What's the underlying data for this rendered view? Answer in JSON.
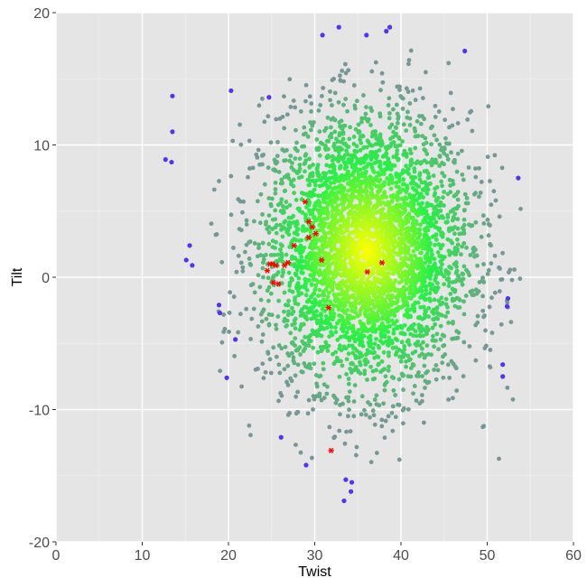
{
  "chart_data": {
    "type": "scatter",
    "xlabel": "Twist",
    "ylabel": "Tilt",
    "xlim": [
      0,
      60
    ],
    "ylim": [
      -20,
      20
    ],
    "x_ticks": [
      0,
      10,
      20,
      30,
      40,
      50,
      60
    ],
    "y_ticks": [
      -20,
      -10,
      0,
      10,
      20
    ],
    "x_tick_labels": [
      "0",
      "10",
      "20",
      "30",
      "40",
      "50",
      "60"
    ],
    "y_tick_labels": [
      "-20",
      "-10",
      "0",
      "10",
      "20"
    ],
    "grid": true,
    "legend": "none",
    "colors": {
      "panel_background": "#e5e5e5",
      "grid_major": "#ffffff",
      "grid_minor": "#f0f0f0",
      "density_high": "#ffff00",
      "density_mid": "#00ff44",
      "density_low": "#7a9a9a",
      "outlier": "#5533ee",
      "highlight": "#ff0000"
    },
    "background_cloud": {
      "description": "dense point cloud",
      "center": [
        36,
        2
      ],
      "point_count_approx": 4000
    },
    "outliers": [
      {
        "x": 13.5,
        "y": 13.7
      },
      {
        "x": 13.5,
        "y": 11.0
      },
      {
        "x": 12.7,
        "y": 8.9
      },
      {
        "x": 13.4,
        "y": 8.7
      },
      {
        "x": 20.3,
        "y": 14.1
      },
      {
        "x": 24.7,
        "y": 13.6
      },
      {
        "x": 15.1,
        "y": 1.3
      },
      {
        "x": 15.5,
        "y": 2.4
      },
      {
        "x": 15.8,
        "y": 0.9
      },
      {
        "x": 18.9,
        "y": -2.1
      },
      {
        "x": 19.0,
        "y": -2.7
      },
      {
        "x": 20.8,
        "y": -4.7
      },
      {
        "x": 19.8,
        "y": -7.6
      },
      {
        "x": 26.1,
        "y": -12.1
      },
      {
        "x": 29.0,
        "y": -14.2
      },
      {
        "x": 33.4,
        "y": -16.9
      },
      {
        "x": 34.2,
        "y": -16.2
      },
      {
        "x": 33.6,
        "y": -15.3
      },
      {
        "x": 34.3,
        "y": -15.5
      },
      {
        "x": 30.9,
        "y": 18.3
      },
      {
        "x": 32.8,
        "y": 18.9
      },
      {
        "x": 36.0,
        "y": 18.3
      },
      {
        "x": 38.3,
        "y": 18.6
      },
      {
        "x": 38.7,
        "y": 18.9
      },
      {
        "x": 47.4,
        "y": 17.1
      },
      {
        "x": 53.6,
        "y": 7.5
      },
      {
        "x": 51.8,
        "y": -6.6
      },
      {
        "x": 51.8,
        "y": -7.5
      },
      {
        "x": 52.4,
        "y": -1.6
      },
      {
        "x": 52.3,
        "y": -2.2
      }
    ],
    "highlighted_points": [
      {
        "x": 28.9,
        "y": 5.7
      },
      {
        "x": 29.3,
        "y": 4.2
      },
      {
        "x": 29.7,
        "y": 3.8
      },
      {
        "x": 30.1,
        "y": 3.3
      },
      {
        "x": 29.3,
        "y": 3.0
      },
      {
        "x": 27.6,
        "y": 2.4
      },
      {
        "x": 30.8,
        "y": 1.3
      },
      {
        "x": 26.9,
        "y": 1.1
      },
      {
        "x": 26.5,
        "y": 0.9
      },
      {
        "x": 25.1,
        "y": 1.0
      },
      {
        "x": 25.5,
        "y": 0.9
      },
      {
        "x": 24.8,
        "y": 1.0
      },
      {
        "x": 24.5,
        "y": 0.5
      },
      {
        "x": 25.2,
        "y": -0.4
      },
      {
        "x": 25.8,
        "y": -0.5
      },
      {
        "x": 37.8,
        "y": 1.1
      },
      {
        "x": 36.1,
        "y": 0.4
      },
      {
        "x": 31.6,
        "y": -2.3
      },
      {
        "x": 31.9,
        "y": -13.1
      }
    ]
  }
}
